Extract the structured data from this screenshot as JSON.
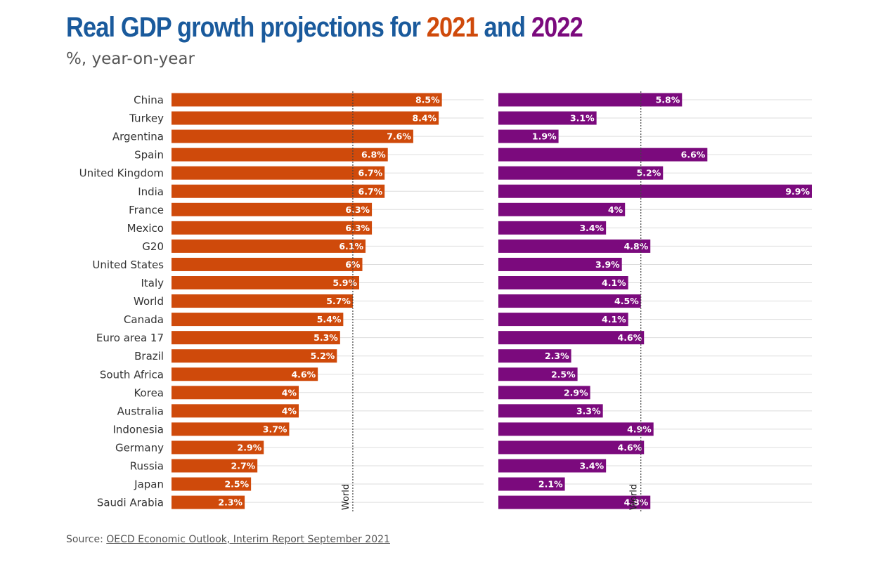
{
  "title_parts": {
    "prefix": "Real GDP growth projections for ",
    "year1": "2021",
    "middle": " and ",
    "year2": "2022"
  },
  "subtitle": "%, year-on-year",
  "source": {
    "label": "Source: ",
    "link_text": "OECD Economic Outlook, Interim Report September 2021"
  },
  "colors": {
    "title": "#1a5a9c",
    "series_2021": "#cf4a0b",
    "series_2022": "#7b0a7d",
    "grid": "#dddddd",
    "reference_line": "#444444"
  },
  "chart_data": {
    "type": "bar",
    "orientation": "horizontal",
    "title": "Real GDP growth projections for 2021 and 2022",
    "subtitle": "%, year-on-year",
    "categories": [
      "China",
      "Turkey",
      "Argentina",
      "Spain",
      "United Kingdom",
      "India",
      "France",
      "Mexico",
      "G20",
      "United States",
      "Italy",
      "World",
      "Canada",
      "Euro area 17",
      "Brazil",
      "South Africa",
      "Korea",
      "Australia",
      "Indonesia",
      "Germany",
      "Russia",
      "Japan",
      "Saudi Arabia"
    ],
    "series": [
      {
        "name": "2021",
        "values": [
          8.5,
          8.4,
          7.6,
          6.8,
          6.7,
          6.7,
          6.3,
          6.3,
          6.1,
          6,
          5.9,
          5.7,
          5.4,
          5.3,
          5.2,
          4.6,
          4,
          4,
          3.7,
          2.9,
          2.7,
          2.5,
          2.3
        ],
        "labels": [
          "8.5%",
          "8.4%",
          "7.6%",
          "6.8%",
          "6.7%",
          "6.7%",
          "6.3%",
          "6.3%",
          "6.1%",
          "6%",
          "5.9%",
          "5.7%",
          "5.4%",
          "5.3%",
          "5.2%",
          "4.6%",
          "4%",
          "4%",
          "3.7%",
          "2.9%",
          "2.7%",
          "2.5%",
          "2.3%"
        ],
        "reference": {
          "label": "World",
          "value": 5.7
        },
        "xlim": [
          0,
          9.9
        ]
      },
      {
        "name": "2022",
        "values": [
          5.8,
          3.1,
          1.9,
          6.6,
          5.2,
          9.9,
          4,
          3.4,
          4.8,
          3.9,
          4.1,
          4.5,
          4.1,
          4.6,
          2.3,
          2.5,
          2.9,
          3.3,
          4.9,
          4.6,
          3.4,
          2.1,
          4.8
        ],
        "labels": [
          "5.8%",
          "3.1%",
          "1.9%",
          "6.6%",
          "5.2%",
          "9.9%",
          "4%",
          "3.4%",
          "4.8%",
          "3.9%",
          "4.1%",
          "4.5%",
          "4.1%",
          "4.6%",
          "2.3%",
          "2.5%",
          "2.9%",
          "3.3%",
          "4.9%",
          "4.6%",
          "3.4%",
          "2.1%",
          "4.8%"
        ],
        "reference": {
          "label": "World",
          "value": 4.5
        },
        "xlim": [
          0,
          9.9
        ]
      }
    ]
  }
}
